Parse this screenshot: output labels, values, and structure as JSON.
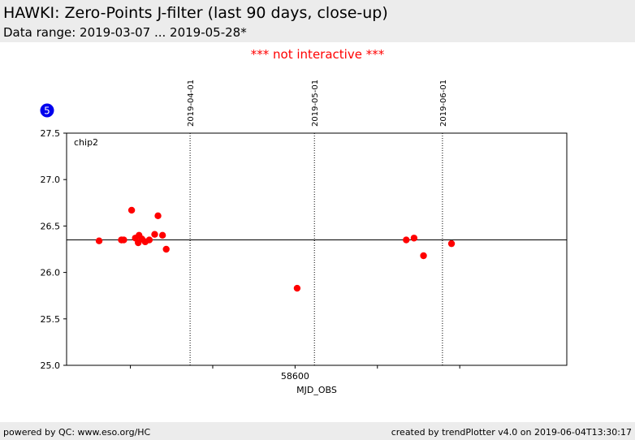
{
  "header": {
    "title": "HAWKI: Zero-Points J-filter (last 90 days, close-up)",
    "subtitle": "Data range: 2019-03-07 ... 2019-05-28*"
  },
  "note": "*** not interactive ***",
  "footer": {
    "left": "powered by QC: www.eso.org/HC",
    "right": "created by trendPlotter v4.0 on 2019-06-04T13:30:17"
  },
  "badge": {
    "label": "5",
    "color": "#0000ee"
  },
  "chart_data": {
    "type": "scatter",
    "panel_label": "chip2",
    "xlabel": "MJD_OBS",
    "ylabel": "",
    "xlim": [
      58544.5,
      58666
    ],
    "ylim": [
      25.0,
      27.5
    ],
    "y_ticks": [
      25.0,
      25.5,
      26.0,
      26.5,
      27.0,
      27.5
    ],
    "y_tick_labels": [
      "25.0",
      "25.5",
      "26.0",
      "26.5",
      "27.0",
      "27.5"
    ],
    "x_ticks": [
      58560,
      58580,
      58600,
      58620,
      58640
    ],
    "x_tick_labels": [
      "",
      "",
      "58600",
      "",
      ""
    ],
    "date_markers": [
      {
        "x": 58574.5,
        "label": "2019-04-01"
      },
      {
        "x": 58604.7,
        "label": "2019-05-01"
      },
      {
        "x": 58635.8,
        "label": "2019-06-01"
      }
    ],
    "reference_line": 26.35,
    "marker_color": "#ff0000",
    "series": [
      {
        "x": [
          58552.4,
          58558.4,
          58560.3,
          58561.2,
          58561.9,
          58562.1,
          58562.8,
          58563.6,
          58564.6,
          58565.9,
          58566.7,
          58567.8,
          58568.7,
          58557.8,
          58557.9,
          58600.5,
          58627.0,
          58628.9,
          58631.2,
          58638.0
        ],
        "y": [
          26.34,
          26.35,
          26.67,
          26.37,
          26.32,
          26.4,
          26.36,
          26.33,
          26.35,
          26.41,
          26.61,
          26.4,
          26.25,
          26.35,
          26.35,
          25.83,
          26.35,
          26.37,
          26.18,
          26.31
        ]
      }
    ]
  }
}
